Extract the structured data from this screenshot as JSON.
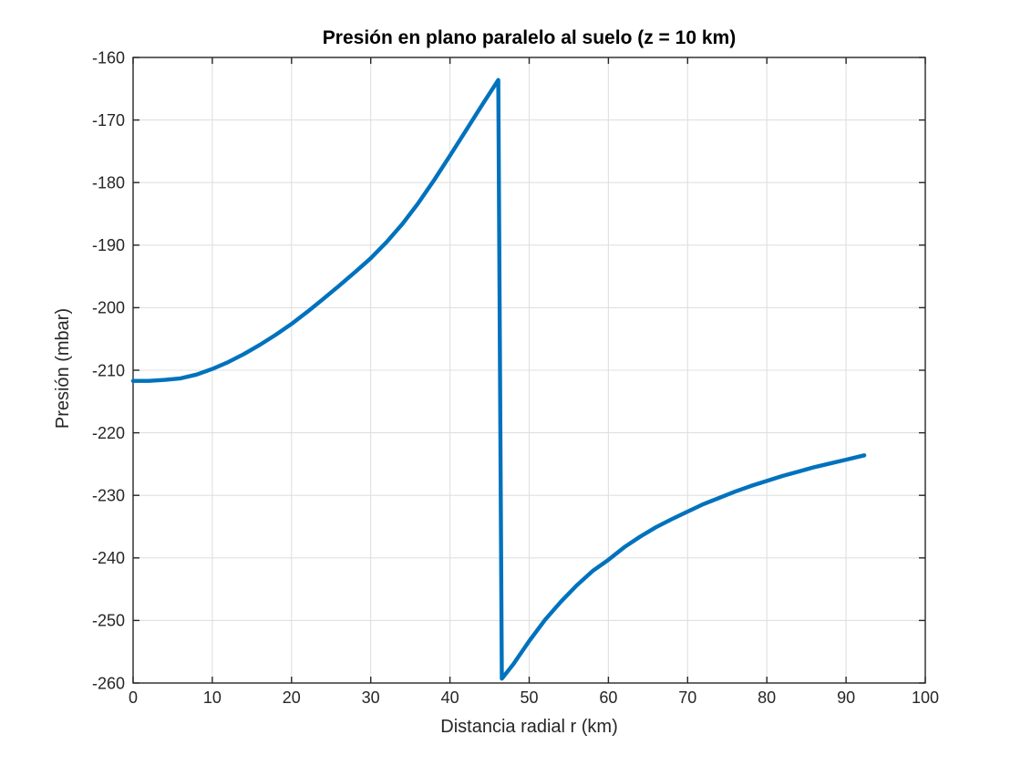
{
  "figure": {
    "background": "#FFFFFF",
    "axis_color": "#262626",
    "grid_color": "#E0E0E0",
    "title_color": "#000000"
  },
  "chart_data": {
    "type": "line",
    "title": "Presión en plano paralelo al suelo (z = 10 km)",
    "xlabel": "Distancia radial r (km)",
    "ylabel": "Presión (mbar)",
    "xlim": [
      0,
      100
    ],
    "ylim": [
      -260,
      -160
    ],
    "xticks": [
      0,
      10,
      20,
      30,
      40,
      50,
      60,
      70,
      80,
      90,
      100
    ],
    "yticks": [
      -260,
      -250,
      -240,
      -230,
      -220,
      -210,
      -200,
      -190,
      -180,
      -170,
      -160
    ],
    "grid": true,
    "legend": "none",
    "series": [
      {
        "color": "#0072BD",
        "points": [
          [
            0,
            -211.7
          ],
          [
            2,
            -211.7
          ],
          [
            4,
            -211.55
          ],
          [
            6,
            -211.3
          ],
          [
            8,
            -210.7
          ],
          [
            10,
            -209.8
          ],
          [
            12,
            -208.7
          ],
          [
            14,
            -207.4
          ],
          [
            16,
            -205.95
          ],
          [
            18,
            -204.35
          ],
          [
            20,
            -202.6
          ],
          [
            22,
            -200.65
          ],
          [
            24,
            -198.6
          ],
          [
            26,
            -196.5
          ],
          [
            28,
            -194.35
          ],
          [
            30,
            -192.1
          ],
          [
            32,
            -189.5
          ],
          [
            34,
            -186.6
          ],
          [
            36,
            -183.3
          ],
          [
            38,
            -179.6
          ],
          [
            40,
            -175.7
          ],
          [
            42,
            -171.7
          ],
          [
            44,
            -167.7
          ],
          [
            46.1,
            -163.6
          ],
          [
            46.55,
            -259.3
          ],
          [
            48,
            -257.0
          ],
          [
            50,
            -253.3
          ],
          [
            52,
            -249.9
          ],
          [
            54,
            -247.0
          ],
          [
            56,
            -244.4
          ],
          [
            58,
            -242.1
          ],
          [
            60,
            -240.3
          ],
          [
            62,
            -238.3
          ],
          [
            64,
            -236.6
          ],
          [
            66,
            -235.1
          ],
          [
            68,
            -233.8
          ],
          [
            70,
            -232.6
          ],
          [
            72,
            -231.4
          ],
          [
            74,
            -230.4
          ],
          [
            76,
            -229.4
          ],
          [
            78,
            -228.5
          ],
          [
            80,
            -227.7
          ],
          [
            82,
            -226.9
          ],
          [
            84,
            -226.2
          ],
          [
            86,
            -225.5
          ],
          [
            88,
            -224.9
          ],
          [
            90,
            -224.3
          ],
          [
            92.3,
            -223.6
          ]
        ]
      }
    ]
  }
}
